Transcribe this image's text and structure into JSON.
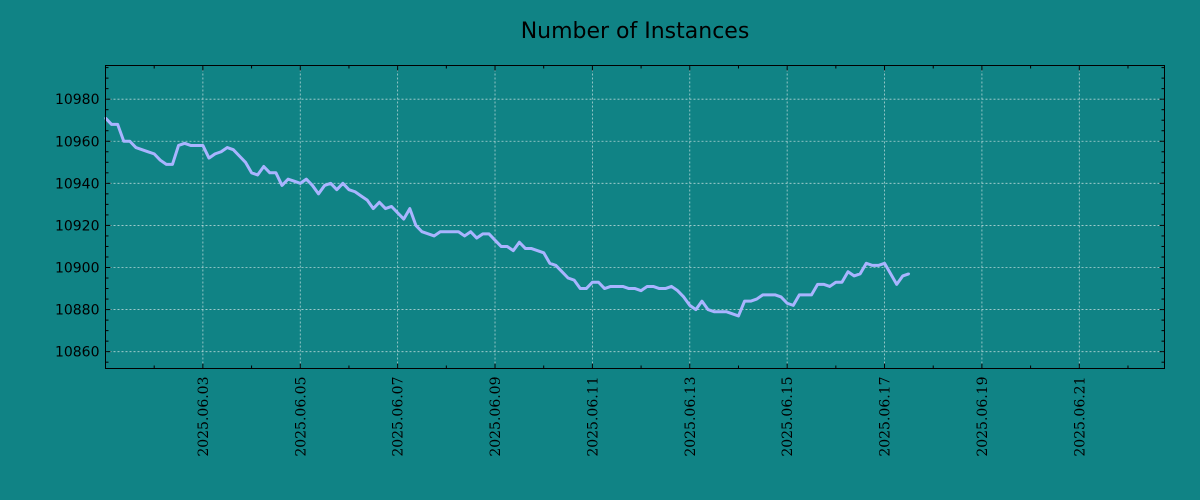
{
  "chart_data": {
    "type": "line",
    "title": "Number of Instances",
    "xlabel": "",
    "ylabel": "",
    "x_start": "2025.06.01 00:00",
    "x_end": "2025.06.22 18:00",
    "xlim": [
      "2025.06.01 00:00",
      "2025.06.22 18:00"
    ],
    "ylim": [
      10852,
      10996
    ],
    "yticks": [
      10860,
      10880,
      10900,
      10920,
      10940,
      10960,
      10980
    ],
    "xticks": [
      "2025.06.03",
      "2025.06.05",
      "2025.06.07",
      "2025.06.09",
      "2025.06.11",
      "2025.06.13",
      "2025.06.15",
      "2025.06.17",
      "2025.06.19",
      "2025.06.21"
    ],
    "grid": true,
    "line_color": "#a9b4ff",
    "series": [
      {
        "points": [
          [
            "2025.06.01 00:00",
            10971
          ],
          [
            "2025.06.01 03:00",
            10968
          ],
          [
            "2025.06.01 06:00",
            10968
          ],
          [
            "2025.06.01 09:00",
            10960
          ],
          [
            "2025.06.01 12:00",
            10960
          ],
          [
            "2025.06.01 15:00",
            10957
          ],
          [
            "2025.06.01 18:00",
            10956
          ],
          [
            "2025.06.01 21:00",
            10955
          ],
          [
            "2025.06.02 00:00",
            10954
          ],
          [
            "2025.06.02 03:00",
            10951
          ],
          [
            "2025.06.02 06:00",
            10949
          ],
          [
            "2025.06.02 09:00",
            10949
          ],
          [
            "2025.06.02 12:00",
            10958
          ],
          [
            "2025.06.02 15:00",
            10959
          ],
          [
            "2025.06.02 18:00",
            10958
          ],
          [
            "2025.06.02 21:00",
            10958
          ],
          [
            "2025.06.03 00:00",
            10958
          ],
          [
            "2025.06.03 03:00",
            10952
          ],
          [
            "2025.06.03 06:00",
            10954
          ],
          [
            "2025.06.03 09:00",
            10955
          ],
          [
            "2025.06.03 12:00",
            10957
          ],
          [
            "2025.06.03 15:00",
            10956
          ],
          [
            "2025.06.03 18:00",
            10953
          ],
          [
            "2025.06.03 21:00",
            10950
          ],
          [
            "2025.06.04 00:00",
            10945
          ],
          [
            "2025.06.04 03:00",
            10944
          ],
          [
            "2025.06.04 06:00",
            10948
          ],
          [
            "2025.06.04 09:00",
            10945
          ],
          [
            "2025.06.04 12:00",
            10945
          ],
          [
            "2025.06.04 15:00",
            10939
          ],
          [
            "2025.06.04 18:00",
            10942
          ],
          [
            "2025.06.04 21:00",
            10941
          ],
          [
            "2025.06.05 00:00",
            10940
          ],
          [
            "2025.06.05 03:00",
            10942
          ],
          [
            "2025.06.05 06:00",
            10939
          ],
          [
            "2025.06.05 09:00",
            10935
          ],
          [
            "2025.06.05 12:00",
            10939
          ],
          [
            "2025.06.05 15:00",
            10940
          ],
          [
            "2025.06.05 18:00",
            10937
          ],
          [
            "2025.06.05 21:00",
            10940
          ],
          [
            "2025.06.06 00:00",
            10937
          ],
          [
            "2025.06.06 03:00",
            10936
          ],
          [
            "2025.06.06 06:00",
            10934
          ],
          [
            "2025.06.06 09:00",
            10932
          ],
          [
            "2025.06.06 12:00",
            10928
          ],
          [
            "2025.06.06 15:00",
            10931
          ],
          [
            "2025.06.06 18:00",
            10928
          ],
          [
            "2025.06.06 21:00",
            10929
          ],
          [
            "2025.06.07 00:00",
            10926
          ],
          [
            "2025.06.07 03:00",
            10923
          ],
          [
            "2025.06.07 06:00",
            10928
          ],
          [
            "2025.06.07 09:00",
            10920
          ],
          [
            "2025.06.07 12:00",
            10917
          ],
          [
            "2025.06.07 15:00",
            10916
          ],
          [
            "2025.06.07 18:00",
            10915
          ],
          [
            "2025.06.07 21:00",
            10917
          ],
          [
            "2025.06.08 00:00",
            10917
          ],
          [
            "2025.06.08 03:00",
            10917
          ],
          [
            "2025.06.08 06:00",
            10917
          ],
          [
            "2025.06.08 09:00",
            10915
          ],
          [
            "2025.06.08 12:00",
            10917
          ],
          [
            "2025.06.08 15:00",
            10914
          ],
          [
            "2025.06.08 18:00",
            10916
          ],
          [
            "2025.06.08 21:00",
            10916
          ],
          [
            "2025.06.09 00:00",
            10913
          ],
          [
            "2025.06.09 03:00",
            10910
          ],
          [
            "2025.06.09 06:00",
            10910
          ],
          [
            "2025.06.09 09:00",
            10908
          ],
          [
            "2025.06.09 12:00",
            10912
          ],
          [
            "2025.06.09 15:00",
            10909
          ],
          [
            "2025.06.09 18:00",
            10909
          ],
          [
            "2025.06.09 21:00",
            10908
          ],
          [
            "2025.06.10 00:00",
            10907
          ],
          [
            "2025.06.10 03:00",
            10902
          ],
          [
            "2025.06.10 06:00",
            10901
          ],
          [
            "2025.06.10 09:00",
            10898
          ],
          [
            "2025.06.10 12:00",
            10895
          ],
          [
            "2025.06.10 15:00",
            10894
          ],
          [
            "2025.06.10 18:00",
            10890
          ],
          [
            "2025.06.10 21:00",
            10890
          ],
          [
            "2025.06.11 00:00",
            10893
          ],
          [
            "2025.06.11 03:00",
            10893
          ],
          [
            "2025.06.11 06:00",
            10890
          ],
          [
            "2025.06.11 09:00",
            10891
          ],
          [
            "2025.06.11 12:00",
            10891
          ],
          [
            "2025.06.11 15:00",
            10891
          ],
          [
            "2025.06.11 18:00",
            10890
          ],
          [
            "2025.06.11 21:00",
            10890
          ],
          [
            "2025.06.12 00:00",
            10889
          ],
          [
            "2025.06.12 03:00",
            10891
          ],
          [
            "2025.06.12 06:00",
            10891
          ],
          [
            "2025.06.12 09:00",
            10890
          ],
          [
            "2025.06.12 12:00",
            10890
          ],
          [
            "2025.06.12 15:00",
            10891
          ],
          [
            "2025.06.12 18:00",
            10889
          ],
          [
            "2025.06.12 21:00",
            10886
          ],
          [
            "2025.06.13 00:00",
            10882
          ],
          [
            "2025.06.13 03:00",
            10880
          ],
          [
            "2025.06.13 06:00",
            10884
          ],
          [
            "2025.06.13 09:00",
            10880
          ],
          [
            "2025.06.13 12:00",
            10879
          ],
          [
            "2025.06.13 15:00",
            10879
          ],
          [
            "2025.06.13 18:00",
            10879
          ],
          [
            "2025.06.13 21:00",
            10878
          ],
          [
            "2025.06.14 00:00",
            10877
          ],
          [
            "2025.06.14 03:00",
            10884
          ],
          [
            "2025.06.14 06:00",
            10884
          ],
          [
            "2025.06.14 09:00",
            10885
          ],
          [
            "2025.06.14 12:00",
            10887
          ],
          [
            "2025.06.14 15:00",
            10887
          ],
          [
            "2025.06.14 18:00",
            10887
          ],
          [
            "2025.06.14 21:00",
            10886
          ],
          [
            "2025.06.15 00:00",
            10883
          ],
          [
            "2025.06.15 03:00",
            10882
          ],
          [
            "2025.06.15 06:00",
            10887
          ],
          [
            "2025.06.15 09:00",
            10887
          ],
          [
            "2025.06.15 12:00",
            10887
          ],
          [
            "2025.06.15 15:00",
            10892
          ],
          [
            "2025.06.15 18:00",
            10892
          ],
          [
            "2025.06.15 21:00",
            10891
          ],
          [
            "2025.06.16 00:00",
            10893
          ],
          [
            "2025.06.16 03:00",
            10893
          ],
          [
            "2025.06.16 06:00",
            10898
          ],
          [
            "2025.06.16 09:00",
            10896
          ],
          [
            "2025.06.16 12:00",
            10897
          ],
          [
            "2025.06.16 15:00",
            10902
          ],
          [
            "2025.06.16 18:00",
            10901
          ],
          [
            "2025.06.16 21:00",
            10901
          ],
          [
            "2025.06.17 00:00",
            10902
          ],
          [
            "2025.06.17 03:00",
            10897
          ],
          [
            "2025.06.17 06:00",
            10892
          ],
          [
            "2025.06.17 09:00",
            10896
          ],
          [
            "2025.06.17 12:00",
            10897
          ]
        ]
      }
    ]
  }
}
